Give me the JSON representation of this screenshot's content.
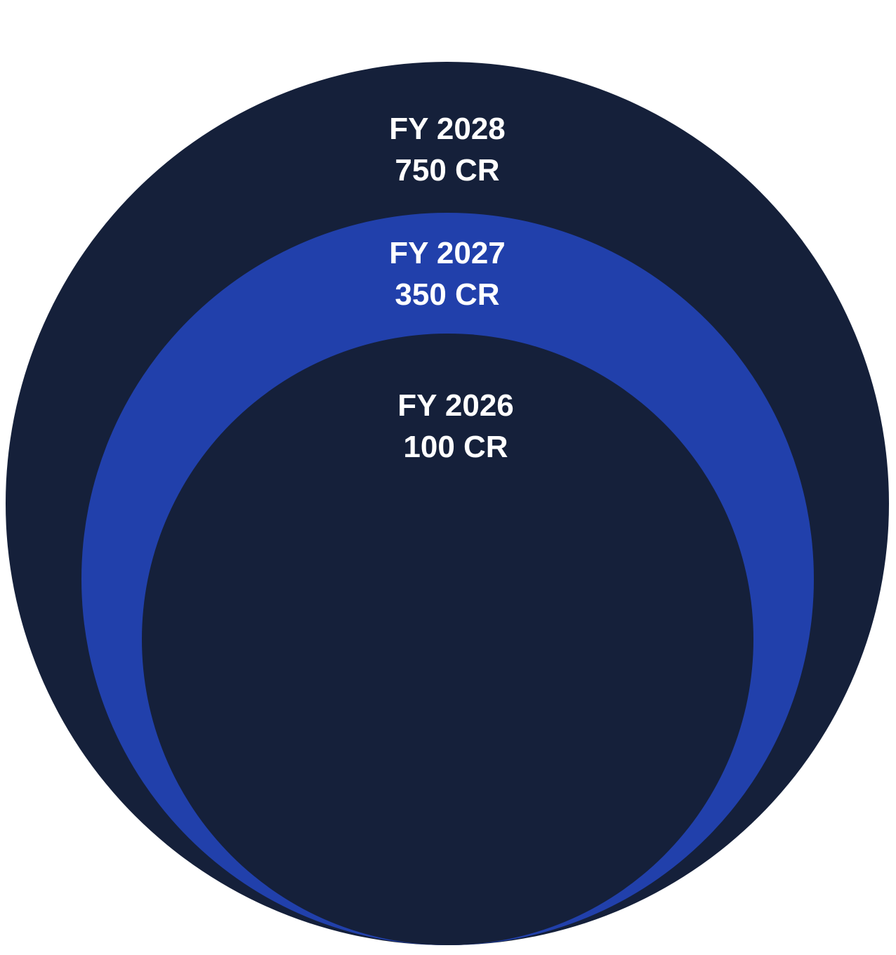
{
  "colors": {
    "background": "#ffffff",
    "dark_navy": "#15203a",
    "royal_blue": "#2140ab",
    "text": "#ffffff"
  },
  "rings": [
    {
      "year": "FY 2028",
      "value": "750 CR",
      "color": "#15203a"
    },
    {
      "year": "FY 2027",
      "value": "350 CR",
      "color": "#2140ab"
    },
    {
      "year": "FY 2026",
      "value": "100 CR",
      "color": "#15203a"
    }
  ]
}
